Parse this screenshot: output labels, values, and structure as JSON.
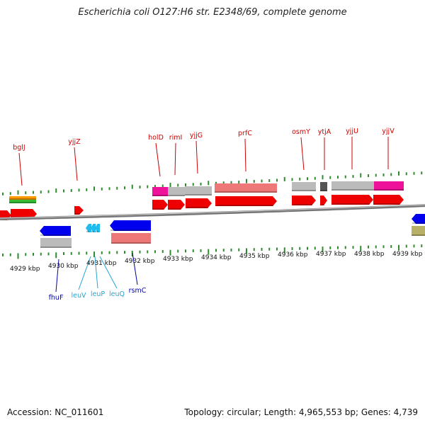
{
  "title": "Escherichia coli O127:H6 str. E2348/69, complete genome",
  "footer": {
    "accession": "Accession: NC_011601",
    "summary": "Topology: circular; Length: 4,965,553 bp; Genes: 4,739"
  },
  "colors": {
    "backbone": "#888888",
    "tick": "#2e8b2e",
    "label_red": "#cc0000",
    "label_navy": "#0000aa",
    "label_cyan": "#22a6d6",
    "cds": "#ee0000",
    "gene_gray": "#bbbbbb",
    "magenta": "#ee1199",
    "pink": "#ee7777",
    "blue": "#0000ee",
    "cyan": "#22bbee",
    "orange": "#ff9900",
    "green": "#33bb33",
    "olive": "#b8b066",
    "dark": "#555555"
  },
  "axis": {
    "unit": "kbp",
    "ticks": [
      "4929 kbp",
      "4930 kbp",
      "4931 kbp",
      "4932 kbp",
      "4933 kbp",
      "4934 kbp",
      "4935 kbp",
      "4936 kbp",
      "4937 kbp",
      "4938 kbp",
      "4939 kbp"
    ]
  },
  "genes": {
    "top": [
      "bglJ",
      "yjjZ",
      "holD",
      "rimI",
      "yjjG",
      "prfC",
      "osmY",
      "ytjA",
      "yjjU",
      "yjjV"
    ],
    "bottom": [
      "fhuF",
      "leuV",
      "leuP",
      "leuQ",
      "rsmC"
    ]
  }
}
